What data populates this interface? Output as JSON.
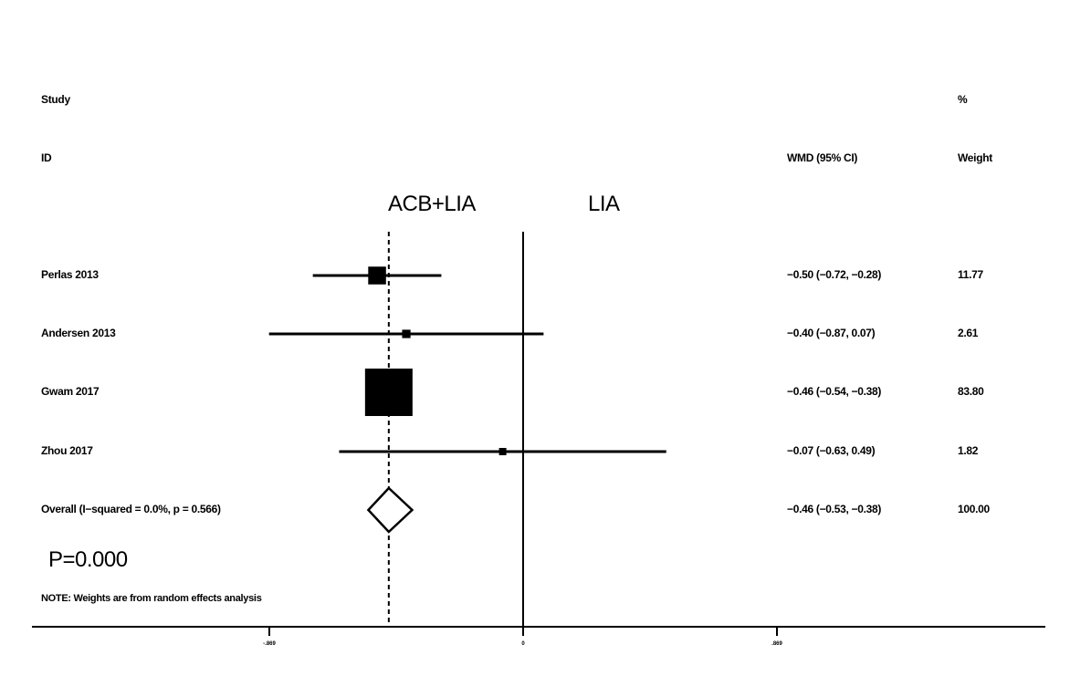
{
  "header": {
    "study_label_1": "Study",
    "study_label_2": "ID",
    "estimate_label": "WMD (95% CI)",
    "weight_label_1": "%",
    "weight_label_2": "Weight"
  },
  "favours": {
    "left": "ACB+LIA",
    "right": "LIA"
  },
  "p_value_text": "P=0.000",
  "note": "NOTE: Weights are from random effects analysis",
  "chart_data": {
    "type": "forest",
    "measure": "WMD",
    "x_range": [
      -0.869,
      0.869
    ],
    "x_ticks": [
      {
        "value": -0.869,
        "label": "-.869"
      },
      {
        "value": 0,
        "label": "0"
      },
      {
        "value": 0.869,
        "label": ".869"
      }
    ],
    "reference_line": 0,
    "overall_line": -0.46,
    "studies": [
      {
        "id": "Perlas 2013",
        "wmd": -0.5,
        "lo": -0.72,
        "hi": -0.28,
        "ci_text": "−0.50 (−0.72, −0.28)",
        "weight": 11.77,
        "weight_text": "11.77"
      },
      {
        "id": "Andersen 2013",
        "wmd": -0.4,
        "lo": -0.87,
        "hi": 0.07,
        "ci_text": "−0.40 (−0.87, 0.07)",
        "weight": 2.61,
        "weight_text": "2.61"
      },
      {
        "id": "Gwam 2017",
        "wmd": -0.46,
        "lo": -0.54,
        "hi": -0.38,
        "ci_text": "−0.46 (−0.54, −0.38)",
        "weight": 83.8,
        "weight_text": "83.80"
      },
      {
        "id": "Zhou 2017",
        "wmd": -0.07,
        "lo": -0.63,
        "hi": 0.49,
        "ci_text": "−0.07 (−0.63, 0.49)",
        "weight": 1.82,
        "weight_text": "1.82"
      }
    ],
    "overall": {
      "id": "Overall  (I−squared = 0.0%, p = 0.566)",
      "wmd": -0.46,
      "lo": -0.53,
      "hi": -0.38,
      "ci_text": "−0.46 (−0.53, −0.38)",
      "weight_text": "100.00"
    }
  }
}
